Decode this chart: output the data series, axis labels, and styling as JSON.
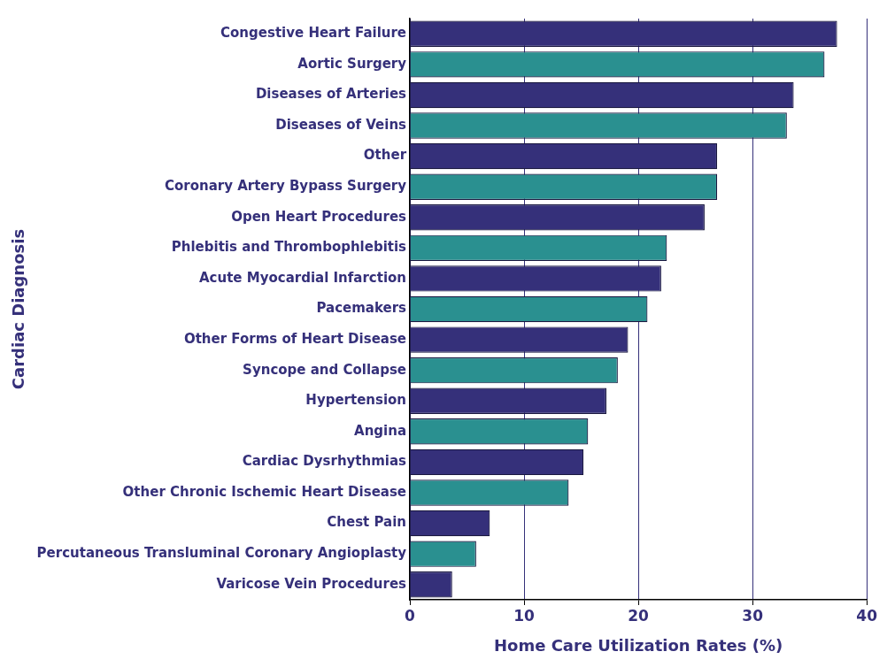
{
  "chart_data": {
    "type": "bar",
    "orientation": "horizontal",
    "xlabel": "Home Care Utilization Rates (%)",
    "ylabel": "Cardiac Diagnosis",
    "categories": [
      "Congestive Heart Failure",
      "Aortic Surgery",
      "Diseases of Arteries",
      "Diseases of Veins",
      "Other",
      "Coronary Artery Bypass Surgery",
      "Open Heart Procedures",
      "Phlebitis and Thrombophlebitis",
      "Acute Myocardial Infarction",
      "Pacemakers",
      "Other Forms of Heart Disease",
      "Syncope and Collapse",
      "Hypertension",
      "Angina",
      "Cardiac Dysrhythmias",
      "Other Chronic Ischemic Heart Disease",
      "Chest Pain",
      "Percutaneous Transluminal Coronary Angioplasty",
      "Varicose Vein Procedures"
    ],
    "values": [
      37.4,
      36.3,
      33.6,
      33.0,
      26.9,
      26.9,
      25.8,
      22.5,
      22.0,
      20.8,
      19.1,
      18.2,
      17.2,
      15.6,
      15.2,
      13.9,
      7.0,
      5.8,
      3.7
    ],
    "colors": [
      "#35307a",
      "#2a9090",
      "#35307a",
      "#2a9090",
      "#35307a",
      "#2a9090",
      "#35307a",
      "#2a9090",
      "#35307a",
      "#2a9090",
      "#35307a",
      "#2a9090",
      "#35307a",
      "#2a9090",
      "#35307a",
      "#2a9090",
      "#35307a",
      "#2a9090",
      "#35307a"
    ],
    "xlim": [
      0,
      40
    ],
    "xticks": [
      0,
      10,
      20,
      30,
      40
    ],
    "grid": "x",
    "legend": false
  }
}
